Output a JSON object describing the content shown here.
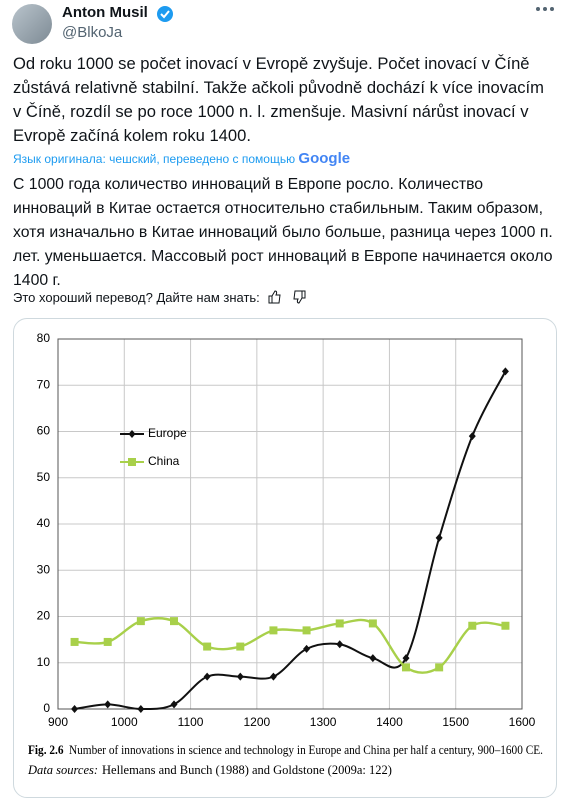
{
  "tweet": {
    "name": "Anton Musil",
    "handle": "@BlkoJa",
    "text": "Od roku 1000 se počet inovací v Evropě zvyšuje. Počet inovací v Číně zůstává relativně stabilní. Takže ačkoli původně dochází k více inovacím v Číně, rozdíl se po roce 1000 n. l. zmenšuje. Masivní nárůst inovací v Evropě začíná kolem roku 1400.",
    "translation_note": "Язык оригинала: чешский, переведено с помощью",
    "translator": "Google",
    "translation": "С 1000 года количество инноваций в Европе росло. Количество инноваций в Китае остается относительно стабильным. Таким образом, хотя изначально в Китае инноваций было больше, разница через 1000 п. лет. уменьшается. Массовый рост инноваций в Европе начинается около 1400 г.",
    "feedback": "Это хороший перевод? Дайте нам знать:"
  },
  "chart_data": {
    "type": "line",
    "x": [
      925,
      975,
      1025,
      1075,
      1125,
      1175,
      1225,
      1275,
      1325,
      1375,
      1425,
      1475,
      1525,
      1575
    ],
    "series": [
      {
        "name": "Europe",
        "color": "#111111",
        "marker": "diamond",
        "values": [
          0,
          1,
          0,
          1,
          7,
          7,
          7,
          13,
          14,
          11,
          11,
          37,
          59,
          73
        ]
      },
      {
        "name": "China",
        "color": "#a8d04a",
        "marker": "square",
        "values": [
          14.5,
          14.5,
          19,
          19,
          13.5,
          13.5,
          17,
          17,
          18.5,
          18.5,
          9,
          9,
          18,
          18
        ]
      }
    ],
    "xlim": [
      900,
      1600
    ],
    "xticks": [
      900,
      1000,
      1100,
      1200,
      1300,
      1400,
      1500,
      1600
    ],
    "ylim": [
      0,
      80
    ],
    "yticks": [
      0,
      10,
      20,
      30,
      40,
      50,
      60,
      70,
      80
    ],
    "grid": true,
    "figure_label": "Fig. 2.6",
    "caption": "Number of innovations in science and technology in Europe and China per half a century, 900–1600 CE.",
    "source_label": "Data sources:",
    "source": "Hellemans and Bunch (1988) and Goldstone (2009a: 122)"
  }
}
